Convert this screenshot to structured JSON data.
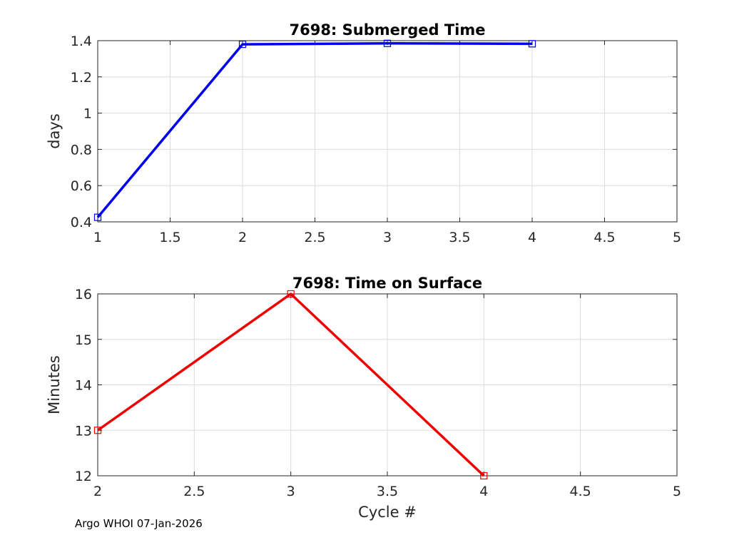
{
  "footer": "Argo WHOI 07-Jan-2026",
  "chart_data": [
    {
      "type": "line",
      "title": "7698: Submerged Time",
      "xlabel": "",
      "ylabel": "days",
      "xlim": [
        1,
        5
      ],
      "ylim": [
        0.4,
        1.4
      ],
      "xticks": [
        1,
        1.5,
        2,
        2.5,
        3,
        3.5,
        4,
        4.5,
        5
      ],
      "yticks": [
        0.4,
        0.6,
        0.8,
        1,
        1.2,
        1.4
      ],
      "xtick_labels": [
        "1",
        "1.5",
        "2",
        "2.5",
        "3",
        "3.5",
        "4",
        "4.5",
        "5"
      ],
      "ytick_labels": [
        "0.4",
        "0.6",
        "0.8",
        "1",
        "1.2",
        "1.4"
      ],
      "grid": true,
      "color": "#0000ee",
      "marker": "square",
      "series": [
        {
          "name": "Submerged Time",
          "x": [
            1,
            2,
            3,
            4
          ],
          "y": [
            0.425,
            1.38,
            1.385,
            1.383
          ]
        }
      ]
    },
    {
      "type": "line",
      "title": "7698: Time on Surface",
      "xlabel": "Cycle #",
      "ylabel": "Minutes",
      "xlim": [
        2,
        5
      ],
      "ylim": [
        12,
        16
      ],
      "xticks": [
        2,
        2.5,
        3,
        3.5,
        4,
        4.5,
        5
      ],
      "yticks": [
        12,
        13,
        14,
        15,
        16
      ],
      "xtick_labels": [
        "2",
        "2.5",
        "3",
        "3.5",
        "4",
        "4.5",
        "5"
      ],
      "ytick_labels": [
        "12",
        "13",
        "14",
        "15",
        "16"
      ],
      "grid": true,
      "color": "#ee0000",
      "marker": "square",
      "series": [
        {
          "name": "Time on Surface",
          "x": [
            2,
            3,
            4
          ],
          "y": [
            13,
            16,
            12
          ]
        }
      ]
    }
  ]
}
